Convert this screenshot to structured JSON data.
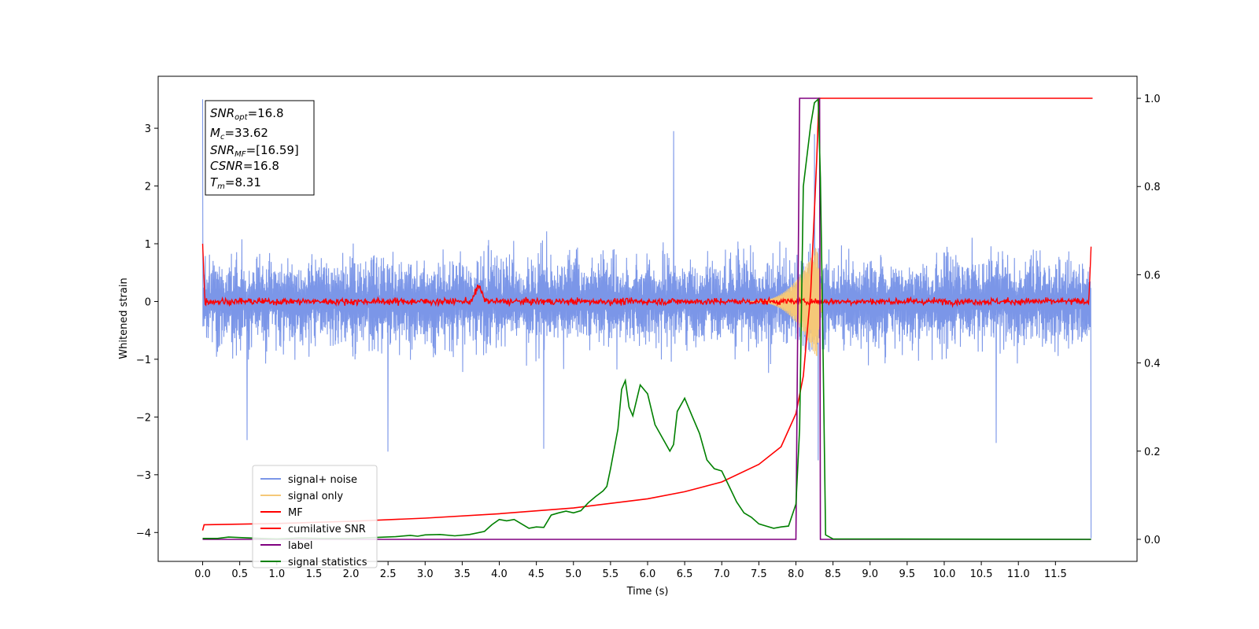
{
  "colors": {
    "signal_noise": "#7b96e8",
    "signal_only": "#f5c878",
    "mf": "#ff0000",
    "cumulative_snr": "#ff0000",
    "label": "#800080",
    "signal_statistics": "#008000"
  },
  "info_box": {
    "snr_opt": {
      "label": "SNR",
      "sub": "opt",
      "value": "=16.8"
    },
    "mc": {
      "label": "M",
      "sub": "c",
      "value": "=33.62"
    },
    "snr_mf": {
      "label": "SNR",
      "sub": "MF",
      "value": "=[16.59]"
    },
    "csnr": {
      "label": "CSNR",
      "value": "=16.8"
    },
    "tm": {
      "label": "T",
      "sub": "m",
      "value": "=8.31"
    }
  },
  "legend": [
    {
      "key": "signal_noise",
      "label": "signal+ noise"
    },
    {
      "key": "signal_only",
      "label": "signal only"
    },
    {
      "key": "mf",
      "label": "MF"
    },
    {
      "key": "cumulative_snr",
      "label": "cumilative SNR"
    },
    {
      "key": "label",
      "label": "label"
    },
    {
      "key": "signal_statistics",
      "label": "signal statistics"
    }
  ],
  "chart_data": {
    "type": "line",
    "title": "",
    "xlabel": "Time (s)",
    "ylabel": "Whitened strain",
    "xlim": [
      -0.6,
      12.6
    ],
    "ylim": [
      -4.5,
      3.9
    ],
    "y2lim": [
      -0.05,
      1.05
    ],
    "xticks": [
      "0.0",
      "0.5",
      "1.0",
      "1.5",
      "2.0",
      "2.5",
      "3.0",
      "3.5",
      "4.0",
      "4.5",
      "5.0",
      "5.5",
      "6.0",
      "6.5",
      "7.0",
      "7.5",
      "8.0",
      "8.5",
      "9.0",
      "9.5",
      "10.0",
      "10.5",
      "11.0",
      "11.5"
    ],
    "yticks": [
      "3",
      "2",
      "1",
      "0",
      "−1",
      "−2",
      "−3",
      "−4"
    ],
    "y2ticks": [
      "1.0",
      "0.8",
      "0.6",
      "0.4",
      "0.2",
      "0.0"
    ],
    "series": [
      {
        "key": "signal_noise",
        "axis": "left",
        "band": {
          "x_start": 0.0,
          "x_end": 11.98,
          "upper_typical": 1.1,
          "lower_typical": -1.1
        },
        "spikes": [
          [
            0.0,
            3.5
          ],
          [
            6.35,
            2.95
          ],
          [
            8.25,
            2.9
          ],
          [
            2.5,
            -2.6
          ],
          [
            4.6,
            -2.55
          ],
          [
            10.7,
            -2.45
          ],
          [
            0.6,
            -2.4
          ],
          [
            11.98,
            -4.1
          ],
          [
            8.3,
            -2.75
          ]
        ]
      },
      {
        "key": "signal_only",
        "axis": "left",
        "chirp": {
          "start": 7.3,
          "peak": 8.28,
          "end": 8.36,
          "peak_amplitude": 1.0
        }
      },
      {
        "key": "mf",
        "axis": "left",
        "baseline": 0.0,
        "noise_amplitude": 0.08,
        "edges": [
          [
            0.0,
            1.0
          ],
          [
            11.98,
            0.95
          ]
        ],
        "bumps": [
          [
            3.72,
            0.25
          ]
        ]
      },
      {
        "key": "cumulative_snr",
        "axis": "right",
        "points": [
          [
            0.0,
            0.02
          ],
          [
            0.02,
            0.033
          ],
          [
            1.0,
            0.036
          ],
          [
            2.0,
            0.041
          ],
          [
            3.0,
            0.048
          ],
          [
            4.0,
            0.058
          ],
          [
            5.0,
            0.071
          ],
          [
            6.0,
            0.092
          ],
          [
            6.5,
            0.108
          ],
          [
            7.0,
            0.13
          ],
          [
            7.5,
            0.17
          ],
          [
            7.8,
            0.21
          ],
          [
            8.0,
            0.285
          ],
          [
            8.1,
            0.37
          ],
          [
            8.2,
            0.56
          ],
          [
            8.28,
            0.86
          ],
          [
            8.31,
            1.0
          ],
          [
            12.0,
            1.0
          ]
        ]
      },
      {
        "key": "label",
        "axis": "right",
        "points": [
          [
            0.0,
            0.0
          ],
          [
            8.0,
            0.0
          ],
          [
            8.05,
            1.0
          ],
          [
            8.32,
            1.0
          ],
          [
            8.33,
            0.0
          ],
          [
            11.98,
            0.0
          ]
        ]
      },
      {
        "key": "signal_statistics",
        "axis": "right",
        "points": [
          [
            0.0,
            0.002
          ],
          [
            0.2,
            0.002
          ],
          [
            0.35,
            0.005
          ],
          [
            0.5,
            0.004
          ],
          [
            0.8,
            0.002
          ],
          [
            1.0,
            0.001
          ],
          [
            1.3,
            0.003
          ],
          [
            1.6,
            0.002
          ],
          [
            2.0,
            0.002
          ],
          [
            2.3,
            0.004
          ],
          [
            2.6,
            0.006
          ],
          [
            2.8,
            0.009
          ],
          [
            2.9,
            0.007
          ],
          [
            3.0,
            0.01
          ],
          [
            3.2,
            0.011
          ],
          [
            3.4,
            0.008
          ],
          [
            3.6,
            0.011
          ],
          [
            3.8,
            0.018
          ],
          [
            3.9,
            0.033
          ],
          [
            4.0,
            0.045
          ],
          [
            4.1,
            0.042
          ],
          [
            4.2,
            0.045
          ],
          [
            4.3,
            0.035
          ],
          [
            4.4,
            0.025
          ],
          [
            4.5,
            0.028
          ],
          [
            4.6,
            0.027
          ],
          [
            4.7,
            0.055
          ],
          [
            4.8,
            0.06
          ],
          [
            4.9,
            0.064
          ],
          [
            5.0,
            0.06
          ],
          [
            5.1,
            0.065
          ],
          [
            5.2,
            0.083
          ],
          [
            5.3,
            0.097
          ],
          [
            5.4,
            0.11
          ],
          [
            5.45,
            0.12
          ],
          [
            5.5,
            0.16
          ],
          [
            5.6,
            0.25
          ],
          [
            5.65,
            0.34
          ],
          [
            5.7,
            0.36
          ],
          [
            5.75,
            0.3
          ],
          [
            5.8,
            0.28
          ],
          [
            5.9,
            0.35
          ],
          [
            6.0,
            0.33
          ],
          [
            6.1,
            0.26
          ],
          [
            6.2,
            0.23
          ],
          [
            6.3,
            0.2
          ],
          [
            6.35,
            0.215
          ],
          [
            6.4,
            0.29
          ],
          [
            6.5,
            0.32
          ],
          [
            6.6,
            0.28
          ],
          [
            6.7,
            0.24
          ],
          [
            6.8,
            0.18
          ],
          [
            6.9,
            0.16
          ],
          [
            7.0,
            0.155
          ],
          [
            7.1,
            0.12
          ],
          [
            7.2,
            0.085
          ],
          [
            7.3,
            0.06
          ],
          [
            7.4,
            0.05
          ],
          [
            7.5,
            0.035
          ],
          [
            7.6,
            0.03
          ],
          [
            7.7,
            0.025
          ],
          [
            7.8,
            0.028
          ],
          [
            7.9,
            0.03
          ],
          [
            8.0,
            0.08
          ],
          [
            8.05,
            0.25
          ],
          [
            8.1,
            0.8
          ],
          [
            8.2,
            0.94
          ],
          [
            8.25,
            0.99
          ],
          [
            8.3,
            0.998
          ],
          [
            8.33,
            0.82
          ],
          [
            8.36,
            0.5
          ],
          [
            8.4,
            0.01
          ],
          [
            8.5,
            0.001
          ],
          [
            11.98,
            0.0
          ]
        ]
      }
    ]
  }
}
